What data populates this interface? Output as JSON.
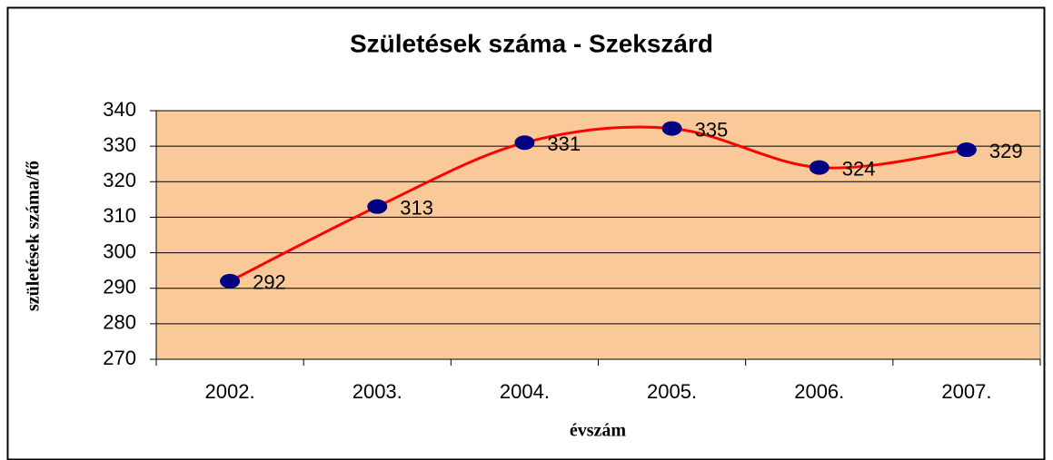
{
  "chart_data": {
    "type": "line",
    "title": "Születések száma - Szekszárd",
    "ylabel": "születések száma/fő",
    "xlabel": "évszám",
    "categories": [
      "2002.",
      "2003.",
      "2004.",
      "2005.",
      "2006.",
      "2007."
    ],
    "values": [
      292,
      313,
      331,
      335,
      324,
      329
    ],
    "color": "#ff0000",
    "marker_color": "#000080",
    "plot_background": "#f9c99a",
    "ylim": [
      270,
      340
    ],
    "yticks": [
      270,
      280,
      290,
      300,
      310,
      320,
      330,
      340
    ],
    "grid": true,
    "smooth": true
  }
}
